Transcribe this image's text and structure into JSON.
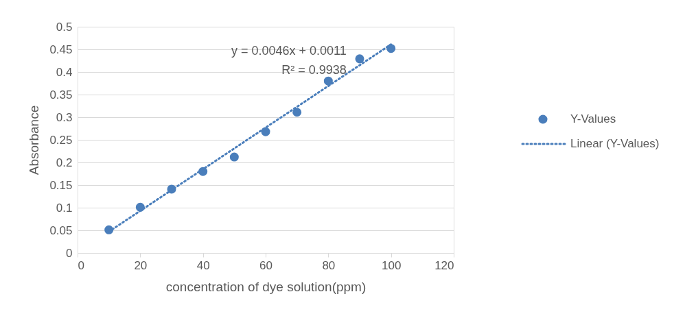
{
  "chart_data": {
    "type": "scatter",
    "xlabel": "concentration of dye solution(ppm)",
    "ylabel": "Absorbance",
    "xlim": [
      0,
      120
    ],
    "xticks": [
      0,
      20,
      40,
      60,
      80,
      100,
      120
    ],
    "ylim": [
      0,
      0.5
    ],
    "yticks": [
      0,
      0.05,
      0.1,
      0.15,
      0.2,
      0.25,
      0.3,
      0.35,
      0.4,
      0.45,
      0.5
    ],
    "grid": "y",
    "legend": "right",
    "marker": "circle",
    "annotations": [
      "y = 0.0046x + 0.0011",
      "R² = 0.9938"
    ],
    "series": [
      {
        "name": "Y-Values",
        "type": "scatter",
        "color": "#4a7ebb",
        "x": [
          10,
          20,
          30,
          40,
          50,
          60,
          70,
          80,
          90,
          100
        ],
        "values": [
          0.051,
          0.101,
          0.141,
          0.18,
          0.212,
          0.268,
          0.311,
          0.38,
          0.429,
          0.452
        ]
      },
      {
        "name": "Linear (Y-Values)",
        "type": "line",
        "line_style": "dotted",
        "marker": "none",
        "color": "#4a7ebb",
        "x": [
          10,
          100
        ],
        "values": [
          0.047,
          0.461
        ]
      }
    ]
  }
}
